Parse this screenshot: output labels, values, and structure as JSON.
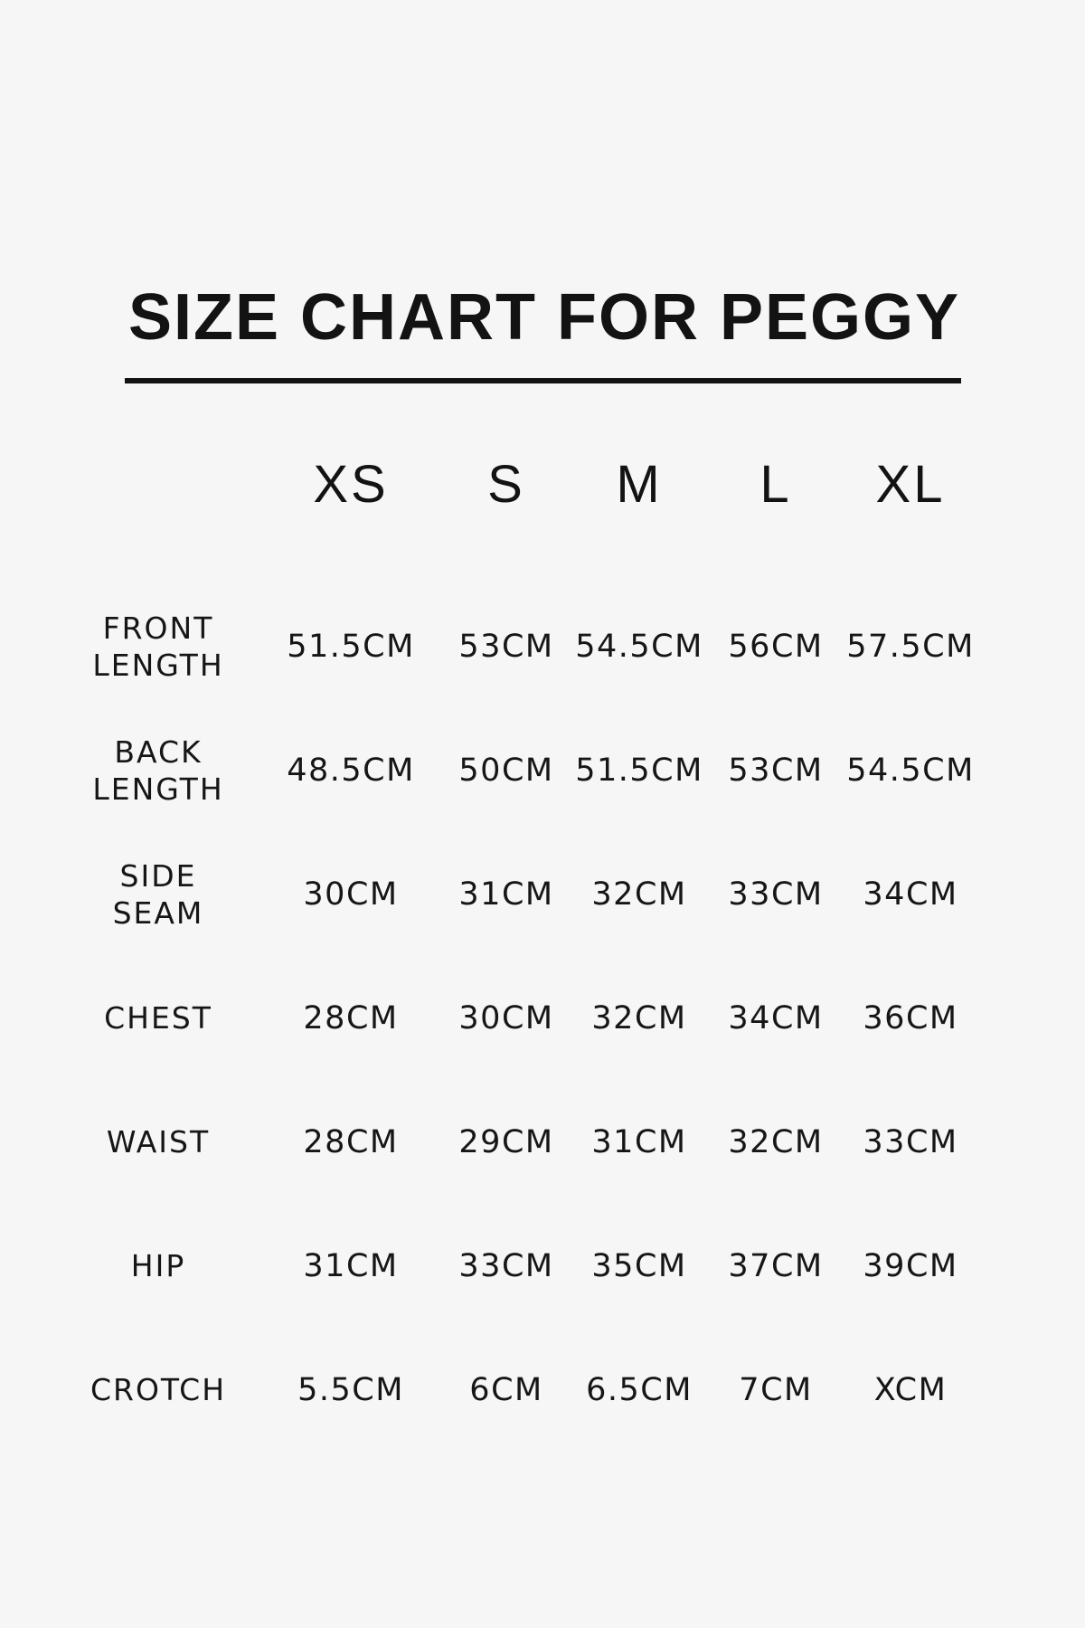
{
  "page": {
    "background_color": "#f6f6f7",
    "text_color": "#151515"
  },
  "title": "SIZE CHART FOR PEGGY",
  "table": {
    "size_headers": [
      "XS",
      "S",
      "M",
      "L",
      "XL"
    ],
    "unit": "CM",
    "rows": [
      {
        "label": "FRONT LENGTH",
        "values": [
          "51.5CM",
          "53CM",
          "54.5CM",
          "56CM",
          "57.5CM"
        ]
      },
      {
        "label": "BACK LENGTH",
        "values": [
          "48.5CM",
          "50CM",
          "51.5CM",
          "53CM",
          "54.5CM"
        ]
      },
      {
        "label": "SIDE SEAM",
        "values": [
          "30CM",
          "31CM",
          "32CM",
          "33CM",
          "34CM"
        ]
      },
      {
        "label": "CHEST",
        "values": [
          "28CM",
          "30CM",
          "32CM",
          "34CM",
          "36CM"
        ]
      },
      {
        "label": "WAIST",
        "values": [
          "28CM",
          "29CM",
          "31CM",
          "32CM",
          "33CM"
        ]
      },
      {
        "label": "HIP",
        "values": [
          "31CM",
          "33CM",
          "35CM",
          "37CM",
          "39CM"
        ]
      },
      {
        "label": "CROTCH",
        "values": [
          "5.5CM",
          "6CM",
          "6.5CM",
          "7CM",
          "XCM"
        ]
      }
    ]
  }
}
